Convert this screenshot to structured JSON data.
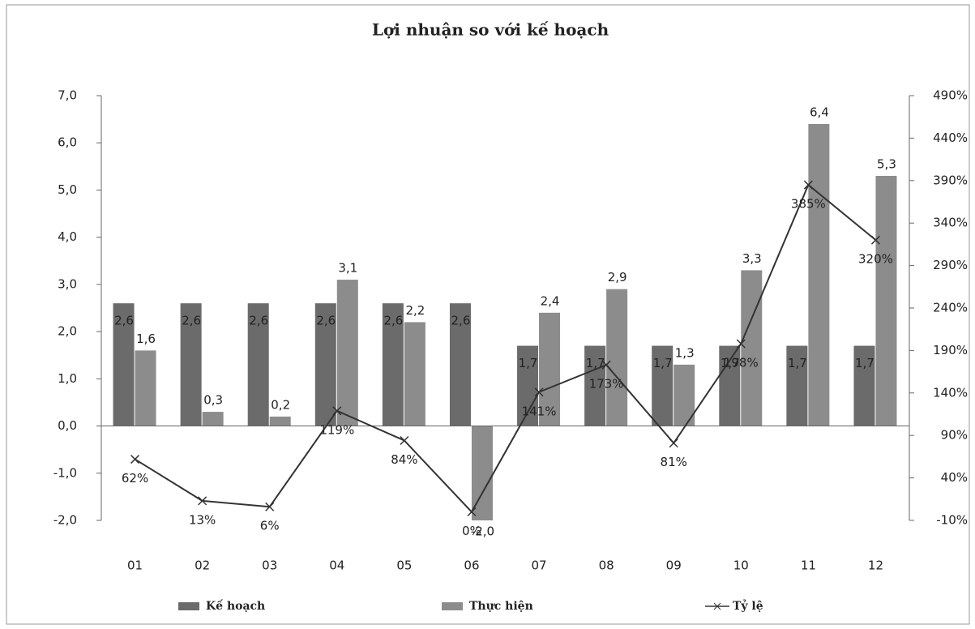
{
  "chart_data": {
    "type": "bar_line",
    "title": "Lợi nhuận so với kế hoạch",
    "categories": [
      "01",
      "02",
      "03",
      "04",
      "05",
      "06",
      "07",
      "08",
      "09",
      "10",
      "11",
      "12"
    ],
    "series": [
      {
        "name": "Kế hoạch",
        "color": "#6b6b6b",
        "type": "bar",
        "values": [
          2.6,
          2.6,
          2.6,
          2.6,
          2.6,
          2.6,
          1.7,
          1.7,
          1.7,
          1.7,
          1.7,
          1.7
        ],
        "value_labels": [
          "2,6",
          "2,6",
          "2,6",
          "2,6",
          "2,6",
          "2,6",
          "1,7",
          "1,7",
          "1,7",
          "1,7",
          "1,7",
          "1,7"
        ]
      },
      {
        "name": "Thực hiện",
        "color": "#8c8c8c",
        "type": "bar",
        "values": [
          1.6,
          0.3,
          0.2,
          3.1,
          2.2,
          -2.0,
          2.4,
          2.9,
          1.3,
          3.3,
          6.4,
          5.3
        ],
        "value_labels": [
          "1,6",
          "0,3",
          "0,2",
          "3,1",
          "2,2",
          "-2,0",
          "2,4",
          "2,9",
          "1,3",
          "3,3",
          "6,4",
          "5,3"
        ]
      },
      {
        "name": "Tỷ lệ",
        "color": "#333333",
        "type": "line",
        "axis": "y2",
        "values": [
          62,
          13,
          6,
          119,
          84,
          0,
          141,
          173,
          81,
          198,
          385,
          320
        ],
        "value_labels": [
          "62%",
          "13%",
          "6%",
          "119%",
          "84%",
          "0%",
          "141%",
          "173%",
          "81%",
          "198%",
          "385%",
          "320%"
        ]
      }
    ],
    "ylim": [
      -2,
      7
    ],
    "yticks": [
      {
        "value": -2,
        "label": "-2,0"
      },
      {
        "value": -1,
        "label": "-1,0"
      },
      {
        "value": 0,
        "label": "0,0"
      },
      {
        "value": 1,
        "label": "1,0"
      },
      {
        "value": 2,
        "label": "2,0"
      },
      {
        "value": 3,
        "label": "3,0"
      },
      {
        "value": 4,
        "label": "4,0"
      },
      {
        "value": 5,
        "label": "5,0"
      },
      {
        "value": 6,
        "label": "6,0"
      },
      {
        "value": 7,
        "label": "7,0"
      }
    ],
    "y2lim": [
      -10,
      490
    ],
    "y2ticks": [
      {
        "value": -10,
        "label": "-10%"
      },
      {
        "value": 40,
        "label": "40%"
      },
      {
        "value": 90,
        "label": "90%"
      },
      {
        "value": 140,
        "label": "140%"
      },
      {
        "value": 190,
        "label": "190%"
      },
      {
        "value": 240,
        "label": "240%"
      },
      {
        "value": 290,
        "label": "290%"
      },
      {
        "value": 340,
        "label": "340%"
      },
      {
        "value": 390,
        "label": "390%"
      },
      {
        "value": 440,
        "label": "440%"
      },
      {
        "value": 490,
        "label": "490%"
      }
    ],
    "legend": "bottom"
  }
}
